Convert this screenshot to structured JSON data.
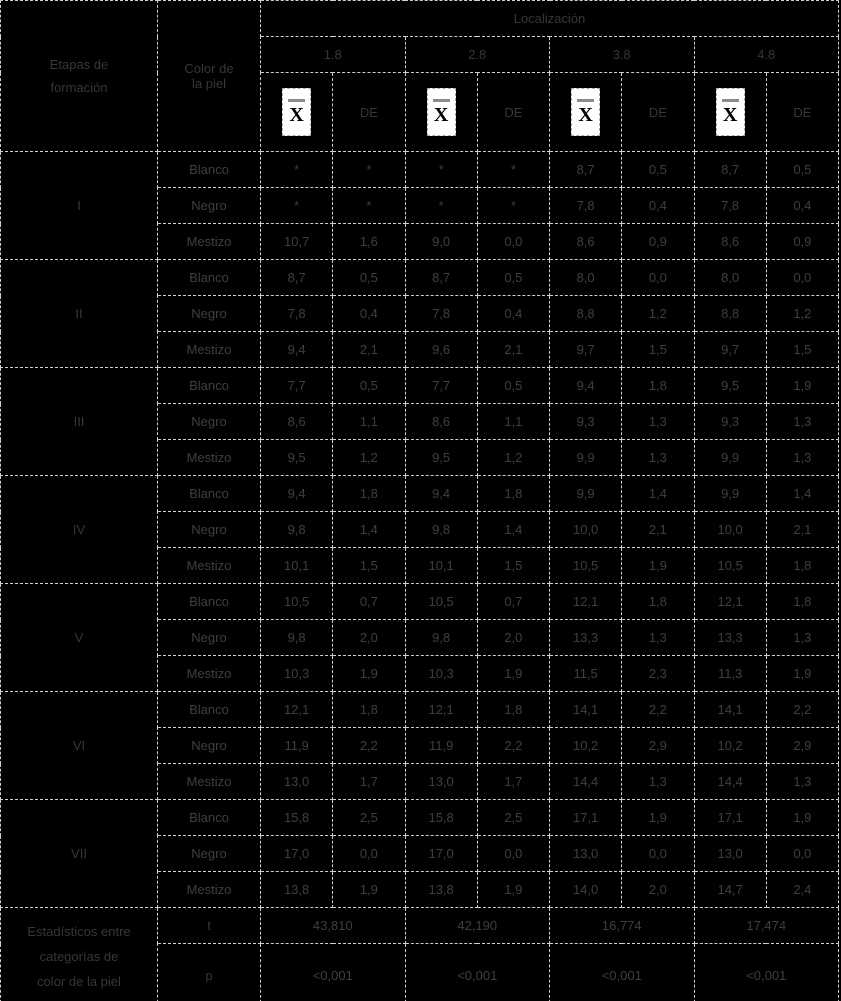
{
  "colors": {
    "background": "#000000",
    "text": "#3b3b3b",
    "border": "#cfcfcf",
    "equation_box_bg": "#ffffff",
    "equation_x": "#000000",
    "macron_bar": "#8d8d8d"
  },
  "header": {
    "stage_column": "Etapas de\nformación",
    "skin_color_column": "Color de\nla piel",
    "group_label": "Localización",
    "locations": [
      "1.8",
      "2.8",
      "3.8",
      "4.8"
    ],
    "mean_glyph": "X",
    "mean_symbol_name": "x-bar",
    "sd_label": "DE"
  },
  "rows": [
    {
      "stage": "I",
      "colors": [
        {
          "name": "Blanco",
          "values": [
            "*",
            "*",
            "*",
            "*",
            "8,7",
            "0,5",
            "8,7",
            "0,5"
          ]
        },
        {
          "name": "Negro",
          "values": [
            "*",
            "*",
            "*",
            "*",
            "7,8",
            "0,4",
            "7,8",
            "0,4"
          ]
        },
        {
          "name": "Mestizo",
          "values": [
            "10,7",
            "1,6",
            "9,0",
            "0,0",
            "8,6",
            "0,9",
            "8,6",
            "0,9"
          ]
        }
      ]
    },
    {
      "stage": "II",
      "colors": [
        {
          "name": "Blanco",
          "values": [
            "8,7",
            "0,5",
            "8,7",
            "0,5",
            "8,0",
            "0,0",
            "8,0",
            "0,0"
          ]
        },
        {
          "name": "Negro",
          "values": [
            "7,8",
            "0,4",
            "7,8",
            "0,4",
            "8,8",
            "1,2",
            "8,8",
            "1,2"
          ]
        },
        {
          "name": "Mestizo",
          "values": [
            "9,4",
            "2,1",
            "9,6",
            "2,1",
            "9,7",
            "1,5",
            "9,7",
            "1,5"
          ]
        }
      ]
    },
    {
      "stage": "III",
      "colors": [
        {
          "name": "Blanco",
          "values": [
            "7,7",
            "0,5",
            "7,7",
            "0,5",
            "9,4",
            "1,8",
            "9,5",
            "1,9"
          ]
        },
        {
          "name": "Negro",
          "values": [
            "8,6",
            "1,1",
            "8,6",
            "1,1",
            "9,3",
            "1,3",
            "9,3",
            "1,3"
          ]
        },
        {
          "name": "Mestizo",
          "values": [
            "9,5",
            "1,2",
            "9,5",
            "1,2",
            "9,9",
            "1,3",
            "9,9",
            "1,3"
          ]
        }
      ]
    },
    {
      "stage": "IV",
      "colors": [
        {
          "name": "Blanco",
          "values": [
            "9,4",
            "1,8",
            "9,4",
            "1,8",
            "9,9",
            "1,4",
            "9,9",
            "1,4"
          ]
        },
        {
          "name": "Negro",
          "values": [
            "9,8",
            "1,4",
            "9,8",
            "1,4",
            "10,0",
            "2,1",
            "10,0",
            "2,1"
          ]
        },
        {
          "name": "Mestizo",
          "values": [
            "10,1",
            "1,5",
            "10,1",
            "1,5",
            "10,5",
            "1,9",
            "10,5",
            "1,8"
          ]
        }
      ]
    },
    {
      "stage": "V",
      "colors": [
        {
          "name": "Blanco",
          "values": [
            "10,5",
            "0,7",
            "10,5",
            "0,7",
            "12,1",
            "1,8",
            "12,1",
            "1,8"
          ]
        },
        {
          "name": "Negro",
          "values": [
            "9,8",
            "2,0",
            "9,8",
            "2,0",
            "13,3",
            "1,3",
            "13,3",
            "1,3"
          ]
        },
        {
          "name": "Mestizo",
          "values": [
            "10,3",
            "1,9",
            "10,3",
            "1,9",
            "11,5",
            "2,3",
            "11,3",
            "1,9"
          ]
        }
      ]
    },
    {
      "stage": "VI",
      "colors": [
        {
          "name": "Blanco",
          "values": [
            "12,1",
            "1,8",
            "12,1",
            "1,8",
            "14,1",
            "2,2",
            "14,1",
            "2,2"
          ]
        },
        {
          "name": "Negro",
          "values": [
            "11,9",
            "2,2",
            "11,9",
            "2,2",
            "10,2",
            "2,9",
            "10,2",
            "2,9"
          ]
        },
        {
          "name": "Mestizo",
          "values": [
            "13,0",
            "1,7",
            "13,0",
            "1,7",
            "14,4",
            "1,3",
            "14,4",
            "1,3"
          ]
        }
      ]
    },
    {
      "stage": "VII",
      "colors": [
        {
          "name": "Blanco",
          "values": [
            "15,8",
            "2,5",
            "15,8",
            "2,5",
            "17,1",
            "1,9",
            "17,1",
            "1,9"
          ]
        },
        {
          "name": "Negro",
          "values": [
            "17,0",
            "0,0",
            "17,0",
            "0,0",
            "13,0",
            "0,0",
            "13,0",
            "0,0"
          ]
        },
        {
          "name": "Mestizo",
          "values": [
            "13,8",
            "1,9",
            "13,8",
            "1,9",
            "14,0",
            "2,0",
            "14,7",
            "2,4"
          ]
        }
      ]
    }
  ],
  "footer": {
    "label": "Estadísticos entre\ncategorías de\ncolor de la piel",
    "t_label": "t",
    "p_label": "p",
    "t_values": [
      "43,810",
      "42,190",
      "16,774",
      "17,474"
    ],
    "p_values": [
      "<0,001",
      "<0,001",
      "<0,001",
      "<0,001"
    ]
  }
}
